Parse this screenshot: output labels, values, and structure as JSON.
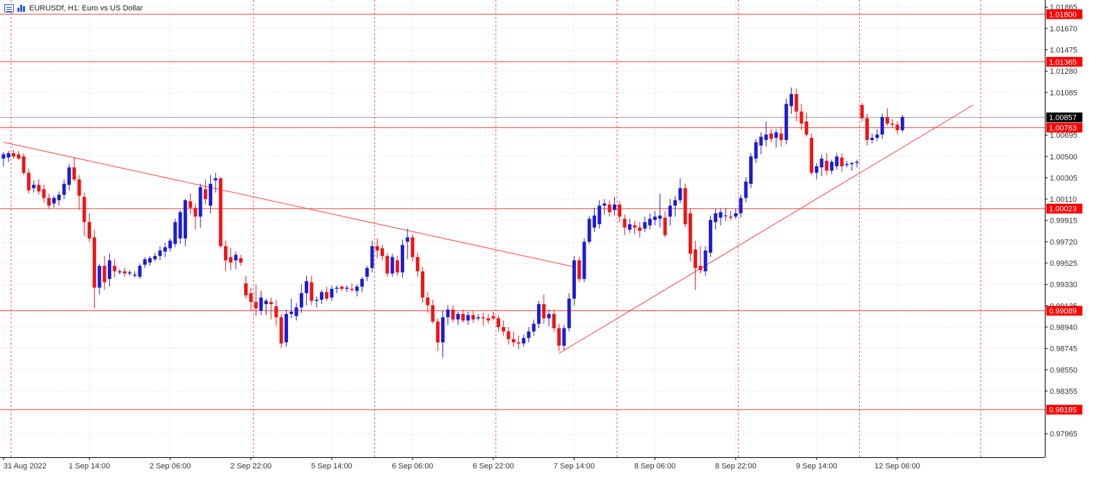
{
  "header": {
    "symbol": "EURUSDf",
    "timeframe": "H1",
    "description": "Euro vs US Dollar",
    "title": "EURUSDf, H1:  Euro vs US Dollar"
  },
  "colors": {
    "background": "#ffffff",
    "grid": "#e8e8e8",
    "session_lines": "#ff5050",
    "level_lines": "#ff4040",
    "bull_candle": "#1c1cd6",
    "bear_candle": "#f01414",
    "price_line": "#9a9a9a",
    "level_label_bg": "#ff0000",
    "current_label_bg": "#000000"
  },
  "chart_data": {
    "type": "candlestick",
    "symbol": "EURUSDf",
    "timeframe": "H1",
    "ylim": [
      0.9775,
      1.0193
    ],
    "y_ticks": [
      "1.01865",
      "1.01670",
      "1.01475",
      "1.01280",
      "1.01085",
      "1.00695",
      "1.00500",
      "1.00305",
      "1.00110",
      "0.99915",
      "0.99720",
      "0.99525",
      "0.99330",
      "0.99135",
      "0.98940",
      "0.98745",
      "0.98550",
      "0.98355",
      "0.97965"
    ],
    "x_labels": [
      "31 Aug 2022",
      "1 Sep 14:00",
      "2 Sep 06:00",
      "2 Sep 22:00",
      "5 Sep 14:00",
      "6 Sep 06:00",
      "6 Sep 22:00",
      "7 Sep 14:00",
      "8 Sep 06:00",
      "8 Sep 22:00",
      "9 Sep 14:00",
      "12 Sep 06:00"
    ],
    "x_label_bar_index": [
      0,
      17,
      33,
      49,
      65,
      81,
      97,
      113,
      129,
      145,
      161,
      177
    ],
    "session_separator_bars": [
      2,
      50,
      74,
      98,
      122,
      146,
      170,
      194
    ],
    "current_price": "1.00857",
    "horizontal_levels": [
      "1.01800",
      "1.01365",
      "1.00763",
      "1.00023",
      "0.99089",
      "0.98185"
    ],
    "trendlines": [
      {
        "name": "descending-resistance",
        "from": {
          "bar": 0,
          "price": 1.0063
        },
        "to": {
          "bar": 113,
          "price": 0.9949
        }
      },
      {
        "name": "ascending-support",
        "from": {
          "bar": 110,
          "price": 0.987
        },
        "to": {
          "bar": 192,
          "price": 1.0097
        }
      }
    ],
    "ohlc": [
      {
        "o": 1.0048,
        "h": 1.0054,
        "l": 1.0041,
        "c": 1.0052
      },
      {
        "o": 1.0049,
        "h": 1.0055,
        "l": 1.0045,
        "c": 1.0053
      },
      {
        "o": 1.0053,
        "h": 1.0056,
        "l": 1.0048,
        "c": 1.005
      },
      {
        "o": 1.0052,
        "h": 1.0055,
        "l": 1.0047,
        "c": 1.0048
      },
      {
        "o": 1.005,
        "h": 1.0053,
        "l": 1.0033,
        "c": 1.0035
      },
      {
        "o": 1.0035,
        "h": 1.0039,
        "l": 1.0016,
        "c": 1.0019
      },
      {
        "o": 1.0021,
        "h": 1.0028,
        "l": 1.0017,
        "c": 1.0024
      },
      {
        "o": 1.0024,
        "h": 1.0029,
        "l": 1.0015,
        "c": 1.0018
      },
      {
        "o": 1.002,
        "h": 1.0024,
        "l": 1.0008,
        "c": 1.0012
      },
      {
        "o": 1.0012,
        "h": 1.0016,
        "l": 1.0002,
        "c": 1.0005
      },
      {
        "o": 1.0007,
        "h": 1.0014,
        "l": 1.0003,
        "c": 1.0012
      },
      {
        "o": 1.001,
        "h": 1.0018,
        "l": 1.0005,
        "c": 1.0015
      },
      {
        "o": 1.0015,
        "h": 1.0029,
        "l": 1.0011,
        "c": 1.0025
      },
      {
        "o": 1.0024,
        "h": 1.0043,
        "l": 1.0019,
        "c": 1.004
      },
      {
        "o": 1.004,
        "h": 1.0049,
        "l": 1.0027,
        "c": 1.0029
      },
      {
        "o": 1.0029,
        "h": 1.0033,
        "l": 1.0001,
        "c": 1.0014
      },
      {
        "o": 1.0013,
        "h": 1.0017,
        "l": 0.9977,
        "c": 0.999
      },
      {
        "o": 0.999,
        "h": 0.9998,
        "l": 0.9972,
        "c": 0.9975
      },
      {
        "o": 0.9976,
        "h": 0.9983,
        "l": 0.9911,
        "c": 0.993
      },
      {
        "o": 0.993,
        "h": 0.9952,
        "l": 0.9924,
        "c": 0.995
      },
      {
        "o": 0.995,
        "h": 0.9959,
        "l": 0.9928,
        "c": 0.9935
      },
      {
        "o": 0.9938,
        "h": 0.9961,
        "l": 0.9931,
        "c": 0.9955
      },
      {
        "o": 0.995,
        "h": 0.9956,
        "l": 0.9939,
        "c": 0.9945
      },
      {
        "o": 0.9944,
        "h": 0.9947,
        "l": 0.9942,
        "c": 0.9945
      },
      {
        "o": 0.9945,
        "h": 0.9948,
        "l": 0.994,
        "c": 0.9943
      },
      {
        "o": 0.9943,
        "h": 0.9946,
        "l": 0.9941,
        "c": 0.9944
      },
      {
        "o": 0.9941,
        "h": 0.9945,
        "l": 0.9939,
        "c": 0.9942
      },
      {
        "o": 0.994,
        "h": 0.9952,
        "l": 0.9938,
        "c": 0.995
      },
      {
        "o": 0.9951,
        "h": 0.9958,
        "l": 0.9948,
        "c": 0.9956
      },
      {
        "o": 0.9953,
        "h": 0.9959,
        "l": 0.995,
        "c": 0.9957
      },
      {
        "o": 0.9956,
        "h": 0.9962,
        "l": 0.9954,
        "c": 0.9959
      },
      {
        "o": 0.9959,
        "h": 0.9968,
        "l": 0.9955,
        "c": 0.9964
      },
      {
        "o": 0.9963,
        "h": 0.9971,
        "l": 0.9958,
        "c": 0.9967
      },
      {
        "o": 0.9966,
        "h": 0.9975,
        "l": 0.9963,
        "c": 0.9973
      },
      {
        "o": 0.997,
        "h": 0.9993,
        "l": 0.9967,
        "c": 0.999
      },
      {
        "o": 0.9975,
        "h": 1.0001,
        "l": 0.997,
        "c": 0.9999
      },
      {
        "o": 0.9975,
        "h": 1.0011,
        "l": 0.9968,
        "c": 1.001
      },
      {
        "o": 1.0009,
        "h": 1.0016,
        "l": 0.9997,
        "c": 1.0003
      },
      {
        "o": 1.0003,
        "h": 1.0007,
        "l": 0.9983,
        "c": 0.9995
      },
      {
        "o": 0.9995,
        "h": 1.0025,
        "l": 0.9985,
        "c": 1.0022
      },
      {
        "o": 1.002,
        "h": 1.0029,
        "l": 1.0006,
        "c": 1.0011
      },
      {
        "o": 1.0005,
        "h": 1.0033,
        "l": 0.9998,
        "c": 1.0025
      },
      {
        "o": 1.0028,
        "h": 1.0035,
        "l": 1.0017,
        "c": 1.003
      },
      {
        "o": 1.003,
        "h": 1.0031,
        "l": 0.9966,
        "c": 0.9968
      },
      {
        "o": 0.9968,
        "h": 0.9973,
        "l": 0.9945,
        "c": 0.9955
      },
      {
        "o": 0.9958,
        "h": 0.9966,
        "l": 0.9946,
        "c": 0.9953
      },
      {
        "o": 0.9955,
        "h": 0.9963,
        "l": 0.9947,
        "c": 0.996
      },
      {
        "o": 0.9957,
        "h": 0.996,
        "l": 0.995,
        "c": 0.9953
      },
      {
        "o": 0.9934,
        "h": 0.9941,
        "l": 0.992,
        "c": 0.9923
      },
      {
        "o": 0.9925,
        "h": 0.993,
        "l": 0.9909,
        "c": 0.9917
      },
      {
        "o": 0.9917,
        "h": 0.9933,
        "l": 0.9904,
        "c": 0.9911
      },
      {
        "o": 0.9909,
        "h": 0.9927,
        "l": 0.9905,
        "c": 0.9921
      },
      {
        "o": 0.9915,
        "h": 0.992,
        "l": 0.9905,
        "c": 0.9918
      },
      {
        "o": 0.9917,
        "h": 0.9921,
        "l": 0.9901,
        "c": 0.9915
      },
      {
        "o": 0.9913,
        "h": 0.9919,
        "l": 0.9895,
        "c": 0.9903
      },
      {
        "o": 0.9903,
        "h": 0.9906,
        "l": 0.9875,
        "c": 0.9879
      },
      {
        "o": 0.988,
        "h": 0.991,
        "l": 0.9876,
        "c": 0.9906
      },
      {
        "o": 0.9906,
        "h": 0.992,
        "l": 0.9902,
        "c": 0.9908
      },
      {
        "o": 0.9904,
        "h": 0.9916,
        "l": 0.99,
        "c": 0.9912
      },
      {
        "o": 0.9912,
        "h": 0.9933,
        "l": 0.9907,
        "c": 0.9925
      },
      {
        "o": 0.9925,
        "h": 0.9941,
        "l": 0.9914,
        "c": 0.9936
      },
      {
        "o": 0.9935,
        "h": 0.9941,
        "l": 0.9914,
        "c": 0.9918
      },
      {
        "o": 0.9918,
        "h": 0.9922,
        "l": 0.9912,
        "c": 0.9919
      },
      {
        "o": 0.9919,
        "h": 0.9928,
        "l": 0.9915,
        "c": 0.9926
      },
      {
        "o": 0.9926,
        "h": 0.9931,
        "l": 0.9918,
        "c": 0.992
      },
      {
        "o": 0.9921,
        "h": 0.9932,
        "l": 0.9918,
        "c": 0.9929
      },
      {
        "o": 0.9929,
        "h": 0.9932,
        "l": 0.9925,
        "c": 0.993
      },
      {
        "o": 0.9931,
        "h": 0.9932,
        "l": 0.9927,
        "c": 0.9929
      },
      {
        "o": 0.9929,
        "h": 0.9932,
        "l": 0.9926,
        "c": 0.993
      },
      {
        "o": 0.9929,
        "h": 0.9934,
        "l": 0.9926,
        "c": 0.9928
      },
      {
        "o": 0.9927,
        "h": 0.9933,
        "l": 0.9922,
        "c": 0.9931
      },
      {
        "o": 0.9931,
        "h": 0.994,
        "l": 0.9926,
        "c": 0.9938
      },
      {
        "o": 0.994,
        "h": 0.995,
        "l": 0.9936,
        "c": 0.9948
      },
      {
        "o": 0.9948,
        "h": 0.9973,
        "l": 0.9944,
        "c": 0.9968
      },
      {
        "o": 0.9968,
        "h": 0.9975,
        "l": 0.9957,
        "c": 0.9964
      },
      {
        "o": 0.9966,
        "h": 0.9969,
        "l": 0.9955,
        "c": 0.9959
      },
      {
        "o": 0.9959,
        "h": 0.9962,
        "l": 0.994,
        "c": 0.9943
      },
      {
        "o": 0.9943,
        "h": 0.9961,
        "l": 0.994,
        "c": 0.9958
      },
      {
        "o": 0.9955,
        "h": 0.9959,
        "l": 0.9941,
        "c": 0.9944
      },
      {
        "o": 0.9944,
        "h": 0.9974,
        "l": 0.9939,
        "c": 0.9969
      },
      {
        "o": 0.9972,
        "h": 0.9984,
        "l": 0.9956,
        "c": 0.9976
      },
      {
        "o": 0.9976,
        "h": 0.9979,
        "l": 0.9954,
        "c": 0.9958
      },
      {
        "o": 0.9958,
        "h": 0.9962,
        "l": 0.994,
        "c": 0.9945
      },
      {
        "o": 0.9945,
        "h": 0.9949,
        "l": 0.9916,
        "c": 0.9921
      },
      {
        "o": 0.9921,
        "h": 0.9926,
        "l": 0.9907,
        "c": 0.9914
      },
      {
        "o": 0.9914,
        "h": 0.9919,
        "l": 0.9897,
        "c": 0.9899
      },
      {
        "o": 0.9899,
        "h": 0.9902,
        "l": 0.9872,
        "c": 0.988
      },
      {
        "o": 0.988,
        "h": 0.9909,
        "l": 0.9866,
        "c": 0.9903
      },
      {
        "o": 0.9903,
        "h": 0.9914,
        "l": 0.9896,
        "c": 0.991
      },
      {
        "o": 0.991,
        "h": 0.9914,
        "l": 0.9898,
        "c": 0.9901
      },
      {
        "o": 0.9901,
        "h": 0.9908,
        "l": 0.9896,
        "c": 0.9906
      },
      {
        "o": 0.9906,
        "h": 0.991,
        "l": 0.9898,
        "c": 0.99
      },
      {
        "o": 0.99,
        "h": 0.9908,
        "l": 0.9896,
        "c": 0.9905
      },
      {
        "o": 0.9905,
        "h": 0.9909,
        "l": 0.9898,
        "c": 0.9901
      },
      {
        "o": 0.9902,
        "h": 0.9906,
        "l": 0.99,
        "c": 0.9903
      },
      {
        "o": 0.9903,
        "h": 0.9907,
        "l": 0.9895,
        "c": 0.9902
      },
      {
        "o": 0.9902,
        "h": 0.9906,
        "l": 0.9897,
        "c": 0.99
      },
      {
        "o": 0.9904,
        "h": 0.9908,
        "l": 0.99,
        "c": 0.9902
      },
      {
        "o": 0.9902,
        "h": 0.9905,
        "l": 0.989,
        "c": 0.9894
      },
      {
        "o": 0.9894,
        "h": 0.99,
        "l": 0.9886,
        "c": 0.989
      },
      {
        "o": 0.989,
        "h": 0.9894,
        "l": 0.9878,
        "c": 0.9883
      },
      {
        "o": 0.9883,
        "h": 0.989,
        "l": 0.9876,
        "c": 0.988
      },
      {
        "o": 0.988,
        "h": 0.9886,
        "l": 0.9874,
        "c": 0.9879
      },
      {
        "o": 0.9879,
        "h": 0.9887,
        "l": 0.9876,
        "c": 0.9884
      },
      {
        "o": 0.9884,
        "h": 0.9894,
        "l": 0.988,
        "c": 0.989
      },
      {
        "o": 0.989,
        "h": 0.9901,
        "l": 0.9886,
        "c": 0.9897
      },
      {
        "o": 0.9897,
        "h": 0.9918,
        "l": 0.9893,
        "c": 0.9915
      },
      {
        "o": 0.9915,
        "h": 0.9924,
        "l": 0.9897,
        "c": 0.9902
      },
      {
        "o": 0.9902,
        "h": 0.991,
        "l": 0.9895,
        "c": 0.9906
      },
      {
        "o": 0.9906,
        "h": 0.991,
        "l": 0.989,
        "c": 0.9893
      },
      {
        "o": 0.9893,
        "h": 0.9897,
        "l": 0.9872,
        "c": 0.9877
      },
      {
        "o": 0.9877,
        "h": 0.9896,
        "l": 0.9873,
        "c": 0.9893
      },
      {
        "o": 0.9893,
        "h": 0.9925,
        "l": 0.989,
        "c": 0.992
      },
      {
        "o": 0.992,
        "h": 0.9959,
        "l": 0.9914,
        "c": 0.9955
      },
      {
        "o": 0.9955,
        "h": 0.9958,
        "l": 0.9935,
        "c": 0.9938
      },
      {
        "o": 0.9938,
        "h": 0.9975,
        "l": 0.9935,
        "c": 0.9972
      },
      {
        "o": 0.9972,
        "h": 0.9996,
        "l": 0.997,
        "c": 0.9993
      },
      {
        "o": 0.9985,
        "h": 1.0003,
        "l": 0.9981,
        "c": 0.9996
      },
      {
        "o": 0.9988,
        "h": 1.001,
        "l": 0.9984,
        "c": 1.0005
      },
      {
        "o": 1.0005,
        "h": 1.0011,
        "l": 0.9997,
        "c": 1.0007
      },
      {
        "o": 1.0006,
        "h": 1.001,
        "l": 0.9995,
        "c": 0.9999
      },
      {
        "o": 1.0001,
        "h": 1.0013,
        "l": 0.9996,
        "c": 1.0006
      },
      {
        "o": 1.0006,
        "h": 1.0009,
        "l": 0.999,
        "c": 0.9995
      },
      {
        "o": 0.9993,
        "h": 0.9997,
        "l": 0.9978,
        "c": 0.9985
      },
      {
        "o": 0.9983,
        "h": 0.9993,
        "l": 0.998,
        "c": 0.9988
      },
      {
        "o": 0.9987,
        "h": 0.9991,
        "l": 0.9979,
        "c": 0.9985
      },
      {
        "o": 0.9985,
        "h": 0.999,
        "l": 0.9976,
        "c": 0.9982
      },
      {
        "o": 0.9984,
        "h": 0.9995,
        "l": 0.9981,
        "c": 0.999
      },
      {
        "o": 0.9987,
        "h": 0.9998,
        "l": 0.9983,
        "c": 0.9993
      },
      {
        "o": 0.9992,
        "h": 1.0,
        "l": 0.9987,
        "c": 0.9995
      },
      {
        "o": 0.9993,
        "h": 1.0016,
        "l": 0.9985,
        "c": 0.9996
      },
      {
        "o": 0.9994,
        "h": 1.0,
        "l": 0.9976,
        "c": 0.9978
      },
      {
        "o": 0.9995,
        "h": 1.0011,
        "l": 0.9987,
        "c": 1.0005
      },
      {
        "o": 1.0005,
        "h": 1.0014,
        "l": 0.9995,
        "c": 1.001
      },
      {
        "o": 1.001,
        "h": 1.003,
        "l": 1.0007,
        "c": 1.0021
      },
      {
        "o": 1.0021,
        "h": 1.0025,
        "l": 0.9985,
        "c": 0.9988
      },
      {
        "o": 0.9998,
        "h": 1.0002,
        "l": 0.9954,
        "c": 0.9961
      },
      {
        "o": 0.9965,
        "h": 0.9973,
        "l": 0.9928,
        "c": 0.9948
      },
      {
        "o": 0.995,
        "h": 0.9968,
        "l": 0.9943,
        "c": 0.9946
      },
      {
        "o": 0.9945,
        "h": 0.9968,
        "l": 0.9941,
        "c": 0.9964
      },
      {
        "o": 0.9962,
        "h": 0.9996,
        "l": 0.9958,
        "c": 0.9992
      },
      {
        "o": 0.999,
        "h": 1.0002,
        "l": 0.9983,
        "c": 0.9998
      },
      {
        "o": 0.9994,
        "h": 1.0002,
        "l": 0.9987,
        "c": 0.9999
      },
      {
        "o": 0.9996,
        "h": 1.0003,
        "l": 0.9991,
        "c": 0.9996
      },
      {
        "o": 0.9995,
        "h": 1.0,
        "l": 0.9992,
        "c": 0.9994
      },
      {
        "o": 0.9995,
        "h": 1.0002,
        "l": 0.9993,
        "c": 0.9998
      },
      {
        "o": 0.9998,
        "h": 1.0015,
        "l": 0.9994,
        "c": 1.0012
      },
      {
        "o": 1.0012,
        "h": 1.0031,
        "l": 1.0008,
        "c": 1.0027
      },
      {
        "o": 1.0025,
        "h": 1.0053,
        "l": 1.0021,
        "c": 1.005
      },
      {
        "o": 1.0048,
        "h": 1.0066,
        "l": 1.0044,
        "c": 1.0063
      },
      {
        "o": 1.006,
        "h": 1.0072,
        "l": 1.0052,
        "c": 1.0068
      },
      {
        "o": 1.0065,
        "h": 1.0082,
        "l": 1.0059,
        "c": 1.007
      },
      {
        "o": 1.0071,
        "h": 1.0075,
        "l": 1.0063,
        "c": 1.0066
      },
      {
        "o": 1.0067,
        "h": 1.0075,
        "l": 1.0058,
        "c": 1.0072
      },
      {
        "o": 1.0071,
        "h": 1.0077,
        "l": 1.0059,
        "c": 1.0065
      },
      {
        "o": 1.0065,
        "h": 1.0103,
        "l": 1.0061,
        "c": 1.0098
      },
      {
        "o": 1.0096,
        "h": 1.0113,
        "l": 1.0089,
        "c": 1.0107
      },
      {
        "o": 1.0107,
        "h": 1.0112,
        "l": 1.0082,
        "c": 1.0091
      },
      {
        "o": 1.0091,
        "h": 1.0098,
        "l": 1.0074,
        "c": 1.008
      },
      {
        "o": 1.0082,
        "h": 1.009,
        "l": 1.0068,
        "c": 1.007
      },
      {
        "o": 1.0067,
        "h": 1.0071,
        "l": 1.0033,
        "c": 1.0035
      },
      {
        "o": 1.0035,
        "h": 1.0044,
        "l": 1.0029,
        "c": 1.0041
      },
      {
        "o": 1.004,
        "h": 1.0052,
        "l": 1.0032,
        "c": 1.0048
      },
      {
        "o": 1.0046,
        "h": 1.0053,
        "l": 1.0033,
        "c": 1.0037
      },
      {
        "o": 1.0037,
        "h": 1.0047,
        "l": 1.0034,
        "c": 1.0045
      },
      {
        "o": 1.0041,
        "h": 1.0053,
        "l": 1.0038,
        "c": 1.005
      },
      {
        "o": 1.0049,
        "h": 1.0053,
        "l": 1.0036,
        "c": 1.0041
      },
      {
        "o": 1.0042,
        "h": 1.0046,
        "l": 1.004,
        "c": 1.0043
      },
      {
        "o": 1.0043,
        "h": 1.0045,
        "l": 1.0037,
        "c": 1.0044
      },
      {
        "o": 1.0044,
        "h": 1.0047,
        "l": 1.004,
        "c": 1.0045
      },
      {
        "o": 1.0097,
        "h": 1.0099,
        "l": 1.0082,
        "c": 1.0085
      },
      {
        "o": 1.0085,
        "h": 1.0089,
        "l": 1.006,
        "c": 1.0065
      },
      {
        "o": 1.0065,
        "h": 1.0071,
        "l": 1.0062,
        "c": 1.0067
      },
      {
        "o": 1.0067,
        "h": 1.0075,
        "l": 1.0064,
        "c": 1.007
      },
      {
        "o": 1.007,
        "h": 1.0089,
        "l": 1.0066,
        "c": 1.0086
      },
      {
        "o": 1.0086,
        "h": 1.0094,
        "l": 1.0078,
        "c": 1.008
      },
      {
        "o": 1.008,
        "h": 1.0084,
        "l": 1.0076,
        "c": 1.0079
      },
      {
        "o": 1.0079,
        "h": 1.0082,
        "l": 1.007,
        "c": 1.0074
      },
      {
        "o": 1.0074,
        "h": 1.0088,
        "l": 1.0072,
        "c": 1.0086
      }
    ]
  }
}
